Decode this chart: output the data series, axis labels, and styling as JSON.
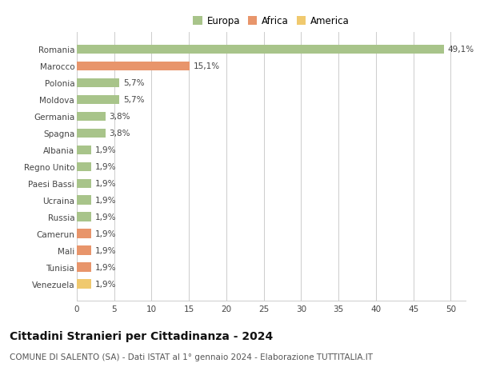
{
  "categories": [
    "Venezuela",
    "Tunisia",
    "Mali",
    "Camerun",
    "Russia",
    "Ucraina",
    "Paesi Bassi",
    "Regno Unito",
    "Albania",
    "Spagna",
    "Germania",
    "Moldova",
    "Polonia",
    "Marocco",
    "Romania"
  ],
  "values": [
    1.9,
    1.9,
    1.9,
    1.9,
    1.9,
    1.9,
    1.9,
    1.9,
    1.9,
    3.8,
    3.8,
    5.7,
    5.7,
    15.1,
    49.1
  ],
  "colors": [
    "#f0c96e",
    "#e8956b",
    "#e8956b",
    "#e8956b",
    "#a8c48a",
    "#a8c48a",
    "#a8c48a",
    "#a8c48a",
    "#a8c48a",
    "#a8c48a",
    "#a8c48a",
    "#a8c48a",
    "#a8c48a",
    "#e8956b",
    "#a8c48a"
  ],
  "labels": [
    "1,9%",
    "1,9%",
    "1,9%",
    "1,9%",
    "1,9%",
    "1,9%",
    "1,9%",
    "1,9%",
    "1,9%",
    "3,8%",
    "3,8%",
    "5,7%",
    "5,7%",
    "15,1%",
    "49,1%"
  ],
  "legend_labels": [
    "Europa",
    "Africa",
    "America"
  ],
  "legend_colors": [
    "#a8c48a",
    "#e8956b",
    "#f0c96e"
  ],
  "title_bold": "Cittadini Stranieri per Cittadinanza - 2024",
  "subtitle": "COMUNE DI SALENTO (SA) - Dati ISTAT al 1° gennaio 2024 - Elaborazione TUTTITALIA.IT",
  "xlim": [
    0,
    52
  ],
  "xticks": [
    0,
    5,
    10,
    15,
    20,
    25,
    30,
    35,
    40,
    45,
    50
  ],
  "bar_height": 0.55,
  "background_color": "#ffffff",
  "grid_color": "#cccccc",
  "title_fontsize": 10,
  "subtitle_fontsize": 7.5,
  "label_fontsize": 7.5,
  "tick_fontsize": 7.5,
  "legend_fontsize": 8.5
}
